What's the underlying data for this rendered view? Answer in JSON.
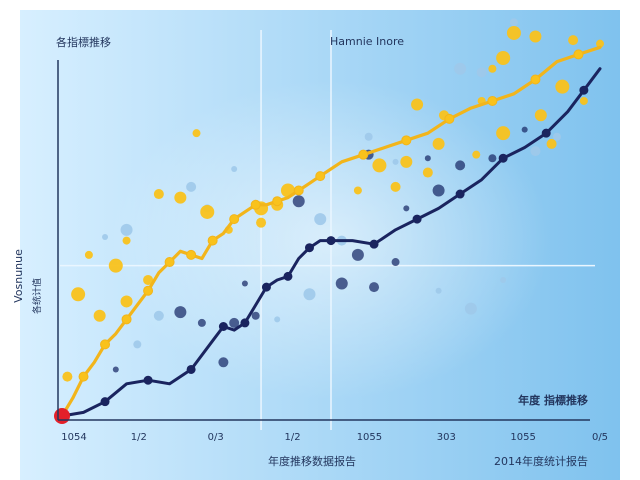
{
  "colors": {
    "bg_left": "#d7efff",
    "bg_right": "#7fc2ee",
    "yellow": "#f9c21c",
    "yellow_line": "#f2b51b",
    "navy": "#1a245f",
    "red": "#e3202a",
    "axis": "#23365e",
    "crosshair": "#eaf6ff",
    "label": "#23365e",
    "scatter_navy": "#1d2f6b",
    "scatter_light": "#9fc9ea"
  },
  "labels": {
    "top_left": "各指標推移",
    "top_center": "Hamnie Inore",
    "y_axis": "Vosnunue",
    "y_axis_sub": "各统计值",
    "bottom_center": "年度推移数据报告",
    "bottom_right": "2014年度统计报告",
    "note_right_mid": "年度 指標推移"
  },
  "chart_data": {
    "type": "line",
    "title": "Hamnie Inore",
    "xlabel": "年度推移数据报告",
    "ylabel": "Vosnunue",
    "x_ticks": [
      "1054",
      "1/2",
      "0/3",
      "1/2",
      "1055",
      "303",
      "1055",
      "0/5"
    ],
    "xlim": [
      0,
      100
    ],
    "ylim": [
      0,
      100
    ],
    "grid": false,
    "crosshair": {
      "x": [
        37,
        50
      ],
      "y": 42
    },
    "series": [
      {
        "color": "navy",
        "points": [
          [
            0,
            0
          ],
          [
            4,
            1
          ],
          [
            8,
            4
          ],
          [
            12,
            9
          ],
          [
            16,
            10
          ],
          [
            20,
            9
          ],
          [
            24,
            13
          ],
          [
            28,
            21
          ],
          [
            30,
            25
          ],
          [
            32,
            24
          ],
          [
            34,
            26
          ],
          [
            36,
            31
          ],
          [
            38,
            36
          ],
          [
            40,
            38
          ],
          [
            42,
            39
          ],
          [
            44,
            44
          ],
          [
            46,
            47
          ],
          [
            48,
            49
          ],
          [
            50,
            49
          ],
          [
            54,
            49
          ],
          [
            58,
            48
          ],
          [
            62,
            52
          ],
          [
            66,
            55
          ],
          [
            70,
            58
          ],
          [
            74,
            62
          ],
          [
            78,
            66
          ],
          [
            82,
            72
          ],
          [
            86,
            75
          ],
          [
            90,
            79
          ],
          [
            94,
            85
          ],
          [
            97,
            91
          ],
          [
            100,
            97
          ]
        ]
      },
      {
        "color": "yellow",
        "points": [
          [
            0,
            0
          ],
          [
            2,
            5
          ],
          [
            4,
            11
          ],
          [
            6,
            15
          ],
          [
            8,
            20
          ],
          [
            10,
            23
          ],
          [
            12,
            27
          ],
          [
            14,
            31
          ],
          [
            16,
            35
          ],
          [
            18,
            40
          ],
          [
            20,
            43
          ],
          [
            22,
            46
          ],
          [
            24,
            45
          ],
          [
            26,
            44
          ],
          [
            28,
            49
          ],
          [
            30,
            51
          ],
          [
            32,
            55
          ],
          [
            34,
            57
          ],
          [
            36,
            59
          ],
          [
            38,
            59
          ],
          [
            40,
            60
          ],
          [
            42,
            61
          ],
          [
            44,
            63
          ],
          [
            46,
            65
          ],
          [
            48,
            67
          ],
          [
            52,
            71
          ],
          [
            56,
            73
          ],
          [
            60,
            75
          ],
          [
            64,
            77
          ],
          [
            68,
            79
          ],
          [
            72,
            83
          ],
          [
            76,
            86
          ],
          [
            80,
            88
          ],
          [
            84,
            90
          ],
          [
            88,
            94
          ],
          [
            92,
            99
          ],
          [
            96,
            101
          ],
          [
            100,
            103
          ]
        ]
      }
    ],
    "scatter_yellow": [
      [
        78,
        88
      ],
      [
        82,
        100
      ],
      [
        88,
        106
      ],
      [
        95,
        105
      ],
      [
        100,
        104
      ],
      [
        93,
        92
      ],
      [
        70,
        76
      ],
      [
        62,
        64
      ],
      [
        55,
        63
      ],
      [
        42,
        63
      ],
      [
        40,
        59
      ],
      [
        37,
        54
      ],
      [
        31,
        52
      ],
      [
        27,
        57
      ],
      [
        22,
        61
      ],
      [
        18,
        62
      ],
      [
        12,
        49
      ],
      [
        10,
        42
      ],
      [
        12,
        32
      ],
      [
        16,
        38
      ],
      [
        5,
        45
      ],
      [
        3,
        34
      ],
      [
        7,
        28
      ],
      [
        1,
        11
      ],
      [
        25,
        79
      ],
      [
        37,
        58
      ],
      [
        64,
        71
      ],
      [
        68,
        68
      ],
      [
        77,
        73
      ],
      [
        82,
        79
      ],
      [
        89,
        84
      ],
      [
        91,
        76
      ],
      [
        97,
        88
      ],
      [
        59,
        70
      ],
      [
        66,
        87
      ],
      [
        71,
        84
      ],
      [
        80,
        97
      ],
      [
        84,
        107
      ]
    ],
    "scatter_navy": [
      [
        10,
        13
      ],
      [
        22,
        29
      ],
      [
        30,
        15
      ],
      [
        36,
        28
      ],
      [
        34,
        37
      ],
      [
        52,
        37
      ],
      [
        58,
        36
      ],
      [
        62,
        43
      ],
      [
        64,
        58
      ],
      [
        70,
        63
      ],
      [
        74,
        70
      ],
      [
        80,
        72
      ],
      [
        86,
        80
      ],
      [
        44,
        60
      ],
      [
        32,
        26
      ],
      [
        26,
        26
      ],
      [
        68,
        72
      ],
      [
        55,
        45
      ],
      [
        57,
        73
      ]
    ],
    "scatter_light": [
      [
        8,
        50
      ],
      [
        12,
        52
      ],
      [
        24,
        64
      ],
      [
        27,
        58
      ],
      [
        32,
        69
      ],
      [
        48,
        55
      ],
      [
        52,
        49
      ],
      [
        57,
        78
      ],
      [
        62,
        71
      ],
      [
        74,
        97
      ],
      [
        78,
        96
      ],
      [
        84,
        110
      ],
      [
        70,
        35
      ],
      [
        76,
        30
      ],
      [
        18,
        28
      ],
      [
        14,
        20
      ],
      [
        40,
        27
      ],
      [
        46,
        34
      ],
      [
        88,
        74
      ],
      [
        92,
        78
      ],
      [
        82,
        38
      ]
    ]
  }
}
